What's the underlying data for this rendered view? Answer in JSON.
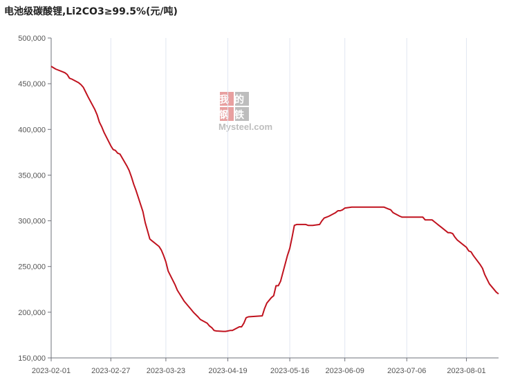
{
  "chart_data": {
    "type": "line",
    "title": "电池级碳酸锂,Li2CO3≥99.5%(元/吨)",
    "xlabel": "",
    "ylabel": "",
    "ylim": [
      150000,
      500000
    ],
    "y_ticks": [
      150000,
      200000,
      250000,
      300000,
      350000,
      400000,
      450000,
      500000
    ],
    "y_tick_labels": [
      "150,000",
      "200,000",
      "250,000",
      "300,000",
      "350,000",
      "400,000",
      "450,000",
      "500,000"
    ],
    "x_range": [
      "2023-02-01",
      "2023-08-15"
    ],
    "x_ticks": [
      "2023-02-01",
      "2023-02-27",
      "2023-03-23",
      "2023-04-19",
      "2023-05-16",
      "2023-06-09",
      "2023-07-06",
      "2023-08-01"
    ],
    "grid": "x-axis only",
    "line_color": "#c0121e",
    "series": [
      {
        "values": [
          [
            "2023-02-01",
            469000
          ],
          [
            "2023-02-02",
            467500
          ],
          [
            "2023-02-03",
            466000
          ],
          [
            "2023-02-06",
            463000
          ],
          [
            "2023-02-07",
            462000
          ],
          [
            "2023-02-08",
            460000
          ],
          [
            "2023-02-09",
            456000
          ],
          [
            "2023-02-10",
            455000
          ],
          [
            "2023-02-13",
            451000
          ],
          [
            "2023-02-14",
            449000
          ],
          [
            "2023-02-15",
            446000
          ],
          [
            "2023-02-16",
            441000
          ],
          [
            "2023-02-17",
            436000
          ],
          [
            "2023-02-20",
            422000
          ],
          [
            "2023-02-21",
            416000
          ],
          [
            "2023-02-22",
            408000
          ],
          [
            "2023-02-23",
            403000
          ],
          [
            "2023-02-24",
            397000
          ],
          [
            "2023-02-27",
            382000
          ],
          [
            "2023-02-28",
            378000
          ],
          [
            "2023-03-01",
            377000
          ],
          [
            "2023-03-02",
            374000
          ],
          [
            "2023-03-03",
            373000
          ],
          [
            "2023-03-06",
            360000
          ],
          [
            "2023-03-07",
            355000
          ],
          [
            "2023-03-08",
            348000
          ],
          [
            "2023-03-09",
            340000
          ],
          [
            "2023-03-10",
            333000
          ],
          [
            "2023-03-13",
            310000
          ],
          [
            "2023-03-14",
            298000
          ],
          [
            "2023-03-15",
            289000
          ],
          [
            "2023-03-16",
            280000
          ],
          [
            "2023-03-17",
            278000
          ],
          [
            "2023-03-20",
            272000
          ],
          [
            "2023-03-21",
            268000
          ],
          [
            "2023-03-22",
            262000
          ],
          [
            "2023-03-23",
            255000
          ],
          [
            "2023-03-24",
            245000
          ],
          [
            "2023-03-27",
            230000
          ],
          [
            "2023-03-28",
            224000
          ],
          [
            "2023-03-29",
            220000
          ],
          [
            "2023-03-30",
            216000
          ],
          [
            "2023-03-31",
            212000
          ],
          [
            "2023-04-03",
            203000
          ],
          [
            "2023-04-04",
            200000
          ],
          [
            "2023-04-06",
            195000
          ],
          [
            "2023-04-07",
            192000
          ],
          [
            "2023-04-10",
            188000
          ],
          [
            "2023-04-11",
            185000
          ],
          [
            "2023-04-12",
            183000
          ],
          [
            "2023-04-13",
            180000
          ],
          [
            "2023-04-14",
            179500
          ],
          [
            "2023-04-17",
            179000
          ],
          [
            "2023-04-18",
            179000
          ],
          [
            "2023-04-19",
            179500
          ],
          [
            "2023-04-20",
            180000
          ],
          [
            "2023-04-21",
            180000
          ],
          [
            "2023-04-24",
            184000
          ],
          [
            "2023-04-25",
            184000
          ],
          [
            "2023-04-26",
            188000
          ],
          [
            "2023-04-27",
            194000
          ],
          [
            "2023-04-28",
            195000
          ],
          [
            "2023-05-04",
            196000
          ],
          [
            "2023-05-05",
            204000
          ],
          [
            "2023-05-06",
            210000
          ],
          [
            "2023-05-08",
            216000
          ],
          [
            "2023-05-09",
            218000
          ],
          [
            "2023-05-10",
            229000
          ],
          [
            "2023-05-11",
            229000
          ],
          [
            "2023-05-12",
            234000
          ],
          [
            "2023-05-15",
            262000
          ],
          [
            "2023-05-16",
            270000
          ],
          [
            "2023-05-17",
            282000
          ],
          [
            "2023-05-18",
            295000
          ],
          [
            "2023-05-19",
            296000
          ],
          [
            "2023-05-22",
            296000
          ],
          [
            "2023-05-23",
            296000
          ],
          [
            "2023-05-24",
            295000
          ],
          [
            "2023-05-25",
            295000
          ],
          [
            "2023-05-26",
            295000
          ],
          [
            "2023-05-29",
            296000
          ],
          [
            "2023-05-30",
            300000
          ],
          [
            "2023-05-31",
            303000
          ],
          [
            "2023-06-01",
            304000
          ],
          [
            "2023-06-02",
            305000
          ],
          [
            "2023-06-05",
            309000
          ],
          [
            "2023-06-06",
            311000
          ],
          [
            "2023-06-07",
            311000
          ],
          [
            "2023-06-08",
            312000
          ],
          [
            "2023-06-09",
            314000
          ],
          [
            "2023-06-12",
            315000
          ],
          [
            "2023-06-13",
            315000
          ],
          [
            "2023-06-14",
            315000
          ],
          [
            "2023-06-15",
            315000
          ],
          [
            "2023-06-16",
            315000
          ],
          [
            "2023-06-19",
            315000
          ],
          [
            "2023-06-20",
            315000
          ],
          [
            "2023-06-21",
            315000
          ],
          [
            "2023-06-26",
            315000
          ],
          [
            "2023-06-27",
            314000
          ],
          [
            "2023-06-28",
            313000
          ],
          [
            "2023-06-29",
            312000
          ],
          [
            "2023-06-30",
            309000
          ],
          [
            "2023-07-03",
            305000
          ],
          [
            "2023-07-04",
            304000
          ],
          [
            "2023-07-05",
            304000
          ],
          [
            "2023-07-06",
            304000
          ],
          [
            "2023-07-07",
            304000
          ],
          [
            "2023-07-10",
            304000
          ],
          [
            "2023-07-11",
            304000
          ],
          [
            "2023-07-12",
            304000
          ],
          [
            "2023-07-13",
            304000
          ],
          [
            "2023-07-14",
            301000
          ],
          [
            "2023-07-17",
            301000
          ],
          [
            "2023-07-18",
            299000
          ],
          [
            "2023-07-19",
            297000
          ],
          [
            "2023-07-20",
            295000
          ],
          [
            "2023-07-21",
            293000
          ],
          [
            "2023-07-24",
            287000
          ],
          [
            "2023-07-25",
            287000
          ],
          [
            "2023-07-26",
            286000
          ],
          [
            "2023-07-27",
            282000
          ],
          [
            "2023-07-28",
            279000
          ],
          [
            "2023-07-31",
            273000
          ],
          [
            "2023-08-01",
            271000
          ],
          [
            "2023-08-02",
            267000
          ],
          [
            "2023-08-03",
            266000
          ],
          [
            "2023-08-04",
            262000
          ],
          [
            "2023-08-07",
            252000
          ],
          [
            "2023-08-08",
            248000
          ],
          [
            "2023-08-09",
            241000
          ],
          [
            "2023-08-10",
            236000
          ],
          [
            "2023-08-11",
            231000
          ],
          [
            "2023-08-14",
            222000
          ],
          [
            "2023-08-15",
            220000
          ]
        ]
      }
    ]
  },
  "watermark": {
    "top": "我的",
    "middle": "钢铁",
    "bottom": "Mysteel.com",
    "color_red": "#e8a0a0",
    "color_gray": "#bdbdbd"
  }
}
